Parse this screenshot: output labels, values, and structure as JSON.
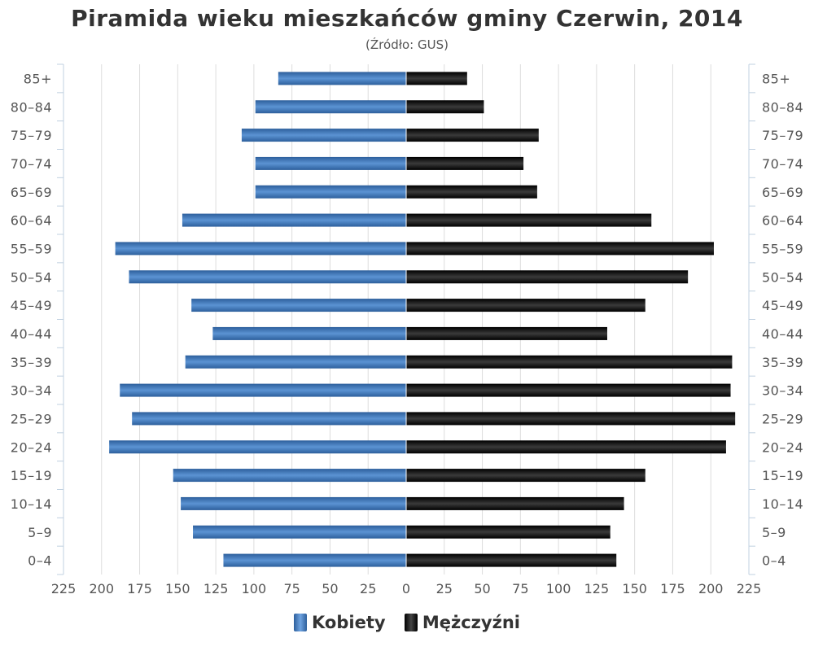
{
  "chart_data": {
    "type": "bar",
    "orientation": "horizontal-pyramid",
    "title": "Piramida wieku mieszkańców gminy Czerwin, 2014",
    "subtitle": "(Źródło: GUS)",
    "categories": [
      "0–4",
      "5–9",
      "10–14",
      "15–19",
      "20–24",
      "25–29",
      "30–34",
      "35–39",
      "40–44",
      "45–49",
      "50–54",
      "55–59",
      "60–64",
      "65–69",
      "70–74",
      "75–79",
      "80–84",
      "85+"
    ],
    "series": [
      {
        "name": "Kobiety",
        "side": "left",
        "color": "#4a7fc1",
        "values": [
          120,
          140,
          148,
          153,
          195,
          180,
          188,
          145,
          127,
          141,
          182,
          191,
          147,
          99,
          99,
          108,
          99,
          84
        ]
      },
      {
        "name": "Mężczyźni",
        "side": "right",
        "color": "#111111",
        "values": [
          138,
          134,
          143,
          157,
          210,
          216,
          213,
          214,
          132,
          157,
          185,
          202,
          161,
          86,
          77,
          87,
          51,
          40
        ]
      }
    ],
    "xlim": [
      -225,
      225
    ],
    "xticks": [
      "225",
      "200",
      "175",
      "150",
      "125",
      "100",
      "75",
      "50",
      "25",
      "0",
      "25",
      "50",
      "75",
      "100",
      "125",
      "150",
      "175",
      "200",
      "225"
    ],
    "grid": true,
    "legend_position": "bottom"
  }
}
